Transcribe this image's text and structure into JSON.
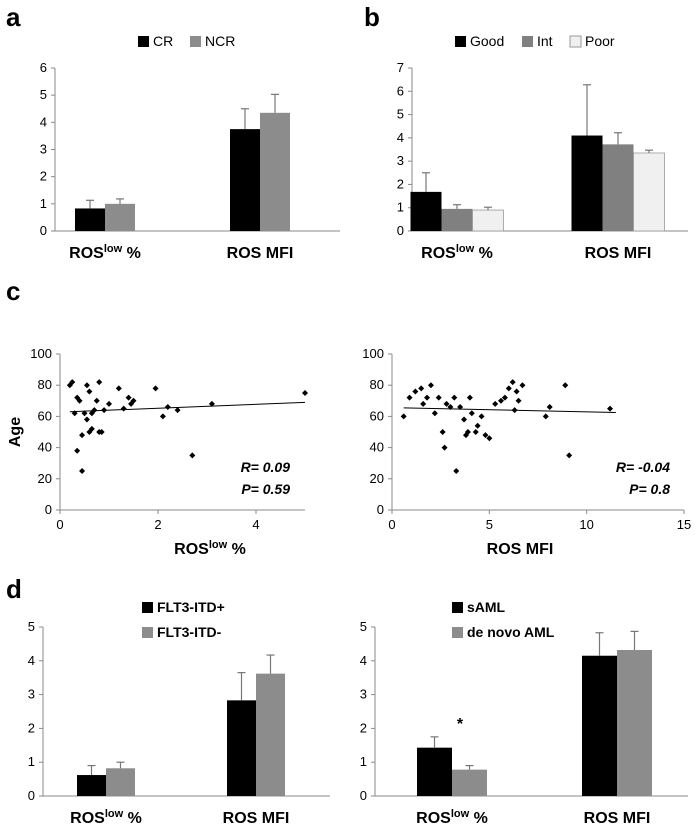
{
  "panels": {
    "a": "a",
    "b": "b",
    "c": "c",
    "d": "d"
  },
  "ros_low_prefix": "ROS",
  "ros_low_sup": "low",
  "ros_low_suffix": " %",
  "chart_data": [
    {
      "id": "a",
      "type": "bar",
      "categories": [
        "ROSlow %",
        "ROS MFI"
      ],
      "series": [
        {
          "name": "CR",
          "color": "#000000",
          "values": [
            0.83,
            3.75
          ],
          "errors": [
            0.3,
            0.75
          ]
        },
        {
          "name": "NCR",
          "color": "#8c8c8c",
          "values": [
            1.0,
            4.35
          ],
          "errors": [
            0.18,
            0.68
          ]
        }
      ],
      "ylim": [
        0,
        6
      ],
      "yticks": [
        "0",
        "1",
        "2",
        "3",
        "4",
        "5",
        "6"
      ],
      "legend": "top"
    },
    {
      "id": "b",
      "type": "bar",
      "categories": [
        "ROSlow %",
        "ROS MFI"
      ],
      "series": [
        {
          "name": "Good",
          "color": "#000000",
          "values": [
            1.68,
            4.1
          ],
          "errors": [
            0.82,
            2.18
          ]
        },
        {
          "name": "Int",
          "color": "#808080",
          "values": [
            0.95,
            3.72
          ],
          "errors": [
            0.18,
            0.5
          ]
        },
        {
          "name": "Poor",
          "color": "#f0f0f0",
          "values": [
            0.9,
            3.35
          ],
          "errors": [
            0.12,
            0.12
          ]
        }
      ],
      "ylim": [
        0,
        7
      ],
      "yticks": [
        "0",
        "1",
        "2",
        "3",
        "4",
        "5",
        "6",
        "7"
      ],
      "legend": "top"
    },
    {
      "id": "c1",
      "type": "scatter",
      "ylabel": "Age",
      "xlim": [
        0,
        5
      ],
      "ylim": [
        0,
        100
      ],
      "xticks": [
        "0",
        "2",
        "4"
      ],
      "yticks": [
        "0",
        "20",
        "40",
        "60",
        "80",
        "100"
      ],
      "annotation": [
        "R= 0.09",
        "P= 0.59"
      ],
      "trend": {
        "x0": 0.2,
        "y0": 63,
        "x1": 5.0,
        "y1": 69
      },
      "points": [
        [
          0.2,
          80
        ],
        [
          0.25,
          82
        ],
        [
          0.3,
          62
        ],
        [
          0.35,
          38
        ],
        [
          0.35,
          72
        ],
        [
          0.4,
          70
        ],
        [
          0.45,
          48
        ],
        [
          0.45,
          25
        ],
        [
          0.5,
          62
        ],
        [
          0.55,
          58
        ],
        [
          0.55,
          80
        ],
        [
          0.6,
          76
        ],
        [
          0.6,
          50
        ],
        [
          0.65,
          52
        ],
        [
          0.65,
          62
        ],
        [
          0.7,
          64
        ],
        [
          0.75,
          70
        ],
        [
          0.8,
          50
        ],
        [
          0.8,
          82
        ],
        [
          0.85,
          50
        ],
        [
          0.9,
          64
        ],
        [
          1.0,
          68
        ],
        [
          1.2,
          78
        ],
        [
          1.3,
          65
        ],
        [
          1.4,
          72
        ],
        [
          1.45,
          68
        ],
        [
          1.5,
          70
        ],
        [
          1.95,
          78
        ],
        [
          2.1,
          60
        ],
        [
          2.2,
          66
        ],
        [
          2.4,
          64
        ],
        [
          2.7,
          35
        ],
        [
          3.1,
          68
        ],
        [
          5.0,
          75
        ]
      ]
    },
    {
      "id": "c2",
      "type": "scatter",
      "xlim": [
        0,
        15
      ],
      "ylim": [
        0,
        100
      ],
      "xticks": [
        "0",
        "5",
        "10",
        "15"
      ],
      "yticks": [
        "0",
        "20",
        "40",
        "60",
        "80",
        "100"
      ],
      "annotation": [
        "R= -0.04",
        "P= 0.8"
      ],
      "trend": {
        "x0": 0.6,
        "y0": 65.5,
        "x1": 11.5,
        "y1": 62.5
      },
      "points": [
        [
          0.6,
          60
        ],
        [
          0.9,
          72
        ],
        [
          1.2,
          76
        ],
        [
          1.5,
          78
        ],
        [
          1.6,
          68
        ],
        [
          1.8,
          72
        ],
        [
          2.0,
          80
        ],
        [
          2.2,
          62
        ],
        [
          2.4,
          72
        ],
        [
          2.6,
          50
        ],
        [
          2.7,
          40
        ],
        [
          2.8,
          68
        ],
        [
          3.0,
          66
        ],
        [
          3.2,
          72
        ],
        [
          3.3,
          25
        ],
        [
          3.5,
          66
        ],
        [
          3.7,
          58
        ],
        [
          3.8,
          48
        ],
        [
          3.9,
          50
        ],
        [
          4.0,
          72
        ],
        [
          4.1,
          62
        ],
        [
          4.3,
          50
        ],
        [
          4.4,
          54
        ],
        [
          4.6,
          60
        ],
        [
          4.8,
          48
        ],
        [
          5.0,
          46
        ],
        [
          5.3,
          68
        ],
        [
          5.6,
          70
        ],
        [
          5.8,
          72
        ],
        [
          6.0,
          78
        ],
        [
          6.2,
          82
        ],
        [
          6.3,
          64
        ],
        [
          6.4,
          76
        ],
        [
          6.5,
          70
        ],
        [
          6.7,
          80
        ],
        [
          7.9,
          60
        ],
        [
          8.1,
          66
        ],
        [
          8.9,
          80
        ],
        [
          9.1,
          35
        ],
        [
          11.2,
          65
        ]
      ]
    },
    {
      "id": "d1",
      "type": "bar",
      "categories": [
        "ROSlow %",
        "ROS MFI"
      ],
      "series": [
        {
          "name": "FLT3-ITD+",
          "color": "#000000",
          "values": [
            0.62,
            2.83
          ],
          "errors": [
            0.28,
            0.82
          ]
        },
        {
          "name": "FLT3-ITD-",
          "color": "#8c8c8c",
          "values": [
            0.82,
            3.62
          ],
          "errors": [
            0.18,
            0.55
          ]
        }
      ],
      "ylim": [
        0,
        5
      ],
      "yticks": [
        "0",
        "1",
        "2",
        "3",
        "4",
        "5"
      ],
      "legend": "top-left"
    },
    {
      "id": "d2",
      "type": "bar",
      "categories": [
        "ROSlow %",
        "ROS MFI"
      ],
      "series": [
        {
          "name": "sAML",
          "color": "#000000",
          "values": [
            1.43,
            4.15
          ],
          "errors": [
            0.32,
            0.68
          ]
        },
        {
          "name": "de novo AML",
          "color": "#8c8c8c",
          "values": [
            0.78,
            4.32
          ],
          "errors": [
            0.12,
            0.55
          ]
        }
      ],
      "ylim": [
        0,
        5
      ],
      "yticks": [
        "0",
        "1",
        "2",
        "3",
        "4",
        "5"
      ],
      "legend": "top-left",
      "annotation": "*"
    }
  ]
}
